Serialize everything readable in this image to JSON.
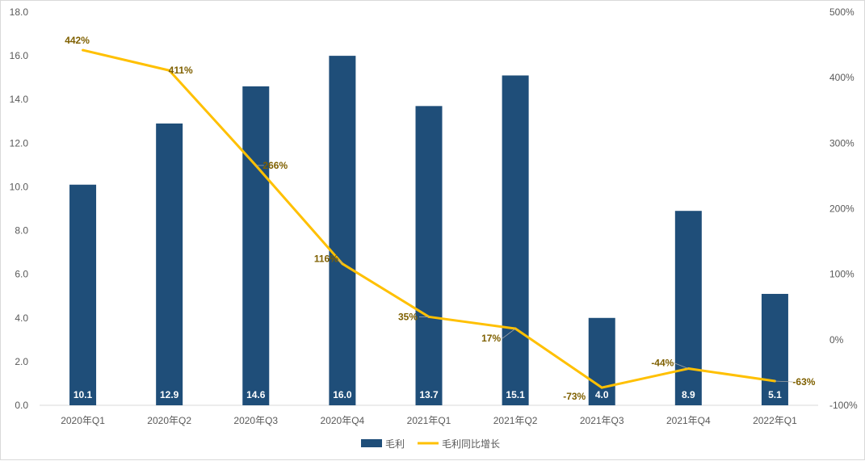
{
  "chart_data": {
    "type": "bar",
    "title": "",
    "categories": [
      "2020年Q1",
      "2020年Q2",
      "2020年Q3",
      "2020年Q4",
      "2021年Q1",
      "2021年Q2",
      "2021年Q3",
      "2021年Q4",
      "2022年Q1"
    ],
    "series": [
      {
        "name": "毛利",
        "type": "bar",
        "axis": "left",
        "color": "#1f4e79",
        "values": [
          10.1,
          12.9,
          14.6,
          16.0,
          13.7,
          15.1,
          4.0,
          8.9,
          5.1
        ],
        "labels": [
          "10.1",
          "12.9",
          "14.6",
          "16.0",
          "13.7",
          "15.1",
          "4.0",
          "8.9",
          "5.1"
        ]
      },
      {
        "name": "毛利同比增长",
        "type": "line",
        "axis": "right",
        "color": "#ffc000",
        "values": [
          442,
          411,
          266,
          116,
          35,
          17,
          -73,
          -44,
          -63
        ],
        "labels": [
          "442%",
          "411%",
          "266%",
          "116%",
          "35%",
          "17%",
          "-73%",
          "-44%",
          "-63%"
        ]
      }
    ],
    "y_left": {
      "ylim": [
        0,
        18
      ],
      "ticks": [
        0,
        2,
        4,
        6,
        8,
        10,
        12,
        14,
        16,
        18
      ],
      "tick_labels": [
        "0.0",
        "2.0",
        "4.0",
        "6.0",
        "8.0",
        "10.0",
        "12.0",
        "14.0",
        "16.0",
        "18.0"
      ]
    },
    "y_right": {
      "ylim": [
        -100,
        500
      ],
      "ticks": [
        -100,
        0,
        100,
        200,
        300,
        400,
        500
      ],
      "tick_labels": [
        "-100%",
        "0%",
        "100%",
        "200%",
        "300%",
        "400%",
        "500%"
      ]
    },
    "legend": {
      "position": "bottom-center",
      "entries": [
        "毛利",
        "毛利同比增长"
      ]
    },
    "grid": false
  }
}
